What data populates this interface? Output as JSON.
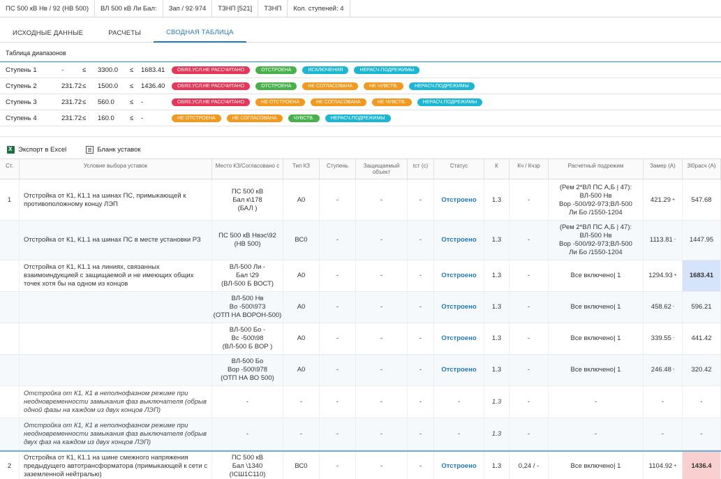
{
  "topbar": [
    "ПС 500 кВ Нв        / 92 (НВ          500)",
    "ВЛ 500 кВ Ли          Бал:",
    "Зап / 92·974",
    "ТЗНП [521]",
    "ТЗНП",
    "Кол. ступеней: 4"
  ],
  "tabs": [
    {
      "label": "ИСХОДНЫЕ ДАННЫЕ",
      "active": false
    },
    {
      "label": "РАСЧЕТЫ",
      "active": false
    },
    {
      "label": "СВОДНАЯ ТАБЛИЦА",
      "active": true
    }
  ],
  "ranges_title": "Таблица диапазонов",
  "ranges": [
    {
      "step": "Ступень 1",
      "a": "-",
      "le1": "≤",
      "b": "3300.0",
      "le2": "≤",
      "c": "1683.41",
      "badges": [
        [
          "ОБЯЗ.УСЛ.НЕ РАССЧИТАНО",
          "red"
        ],
        [
          "ОТСТРОЕНА",
          "green"
        ],
        [
          "ИСКЛЮЧЕНИЯ",
          "cyan"
        ],
        [
          "НЕРАСЧ.ПОДРЕЖИМЫ",
          "cyan"
        ]
      ]
    },
    {
      "step": "Ступень 2",
      "a": "231.72",
      "le1": "≤",
      "b": "1500.0",
      "le2": "≤",
      "c": "1436.40",
      "badges": [
        [
          "ОБЯЗ.УСЛ.НЕ РАССЧИТАНО",
          "red"
        ],
        [
          "ОТСТРОЕНА",
          "green"
        ],
        [
          "НЕ СОГЛАСОВАНА",
          "orange"
        ],
        [
          "НЕ ЧУВСТВ.",
          "orange"
        ],
        [
          "НЕРАСЧ.ПОДРЕЖИМЫ",
          "cyan"
        ]
      ]
    },
    {
      "step": "Ступень 3",
      "a": "231.72",
      "le1": "≤",
      "b": "560.0",
      "le2": "≤",
      "c": "-",
      "badges": [
        [
          "ОБЯЗ.УСЛ.НЕ РАССЧИТАНО",
          "red"
        ],
        [
          "НЕ ОТСТРОЕНА",
          "orange"
        ],
        [
          "НЕ СОГЛАСОВАНА",
          "orange"
        ],
        [
          "НЕ ЧУВСТВ.",
          "orange"
        ],
        [
          "НЕРАСЧ.ПОДРЕЖИМЫ",
          "cyan"
        ]
      ]
    },
    {
      "step": "Ступень 4",
      "a": "231.72",
      "le1": "≤",
      "b": "160.0",
      "le2": "≤",
      "c": "-",
      "badges": [
        [
          "НЕ ОТСТРОЕНА",
          "orange"
        ],
        [
          "НЕ СОГЛАСОВАНА",
          "orange"
        ],
        [
          "ЧУВСТВ.",
          "green"
        ],
        [
          "НЕРАСЧ.ПОДРЕЖИМЫ",
          "cyan"
        ]
      ]
    }
  ],
  "toolbar": {
    "export": "Экспорт в Excel",
    "blank": "Бланк уставок"
  },
  "columns": [
    "Ст.",
    "Условие выбора уставок",
    "Место КЗ/Согласовано с",
    "Тип КЗ",
    "Ступень",
    "Защищаемый объект",
    "tст (с)",
    "Статус",
    "К",
    "Кч / Кчзр",
    "Расчетный подрежим",
    "Замер (А)",
    "3I0расч (А)"
  ],
  "rows": [
    {
      "st": "1",
      "cond": "Отстройка от К1, К1.1 на шинах ПС, примыкающей к противоположному концу ЛЭП",
      "place": "ПС 500 кВ\nБал              к\\178\n(БАЛ                     )",
      "type": "А0",
      "stup": "-",
      "obj": "-",
      "t": "-",
      "status": "Отстроено",
      "k": "1.3",
      "kch": "-",
      "mode": "(Рем 2*ВЛ ПС А,Б | 47):\nВЛ-500 Нв\nВор         -500/92-973;ВЛ-500\nЛи         Бо          /1550-1204",
      "meas": "421.29",
      "sup": "+",
      "calc": "547.68",
      "h": 58,
      "alt": false
    },
    {
      "st": "",
      "cond": "Отстройка от К1, К1.1 на шинах ПС в месте установки РЗ",
      "place": "ПС 500 кВ Нвэс\\92\n(НВ           500)",
      "type": "ВС0",
      "stup": "-",
      "obj": "-",
      "t": "-",
      "status": "Отстроено",
      "k": "1.3",
      "kch": "-",
      "mode": "(Рем 2*ВЛ ПС А,Б | 47):\nВЛ-500 Нв\nВор         -500/92-973;ВЛ-500\nЛи         Бо          /1550-1204",
      "meas": "1113.81",
      "sup": "-",
      "calc": "1447.95",
      "h": 57,
      "alt": true
    },
    {
      "st": "",
      "cond": "Отстройка от К1, К1.1 на линиях, связанных взаимоиндукцией с защищаемой и не имеющих общих точек хотя бы на одном из концов",
      "place": "ВЛ-500 Ли           -\nБал                    \\29\n(ВЛ-500 Б        ВОСТ)",
      "type": "А0",
      "stup": "-",
      "obj": "-",
      "t": "-",
      "status": "Отстроено",
      "k": "1.3",
      "kch": "-",
      "mode": "Все включено| 1",
      "meas": "1294.93",
      "sup": "+",
      "calc": "1683.41",
      "h": 45,
      "alt": false,
      "hl": "blue"
    },
    {
      "st": "",
      "cond": "",
      "place": "ВЛ-500 Нв\nВо                  -500\\973\n(ОТП НА ВОРОН-500)",
      "type": "А0",
      "stup": "-",
      "obj": "-",
      "t": "-",
      "status": "Отстроено",
      "k": "1.3",
      "kch": "-",
      "mode": "Все включено| 1",
      "meas": "458.62",
      "sup": "-",
      "calc": "596.21",
      "h": 45,
      "alt": true
    },
    {
      "st": "",
      "cond": "",
      "place": "ВЛ-500 Бо          -\nВс                 -500\\98\n(ВЛ-500 Б       ВОР      )",
      "type": "А0",
      "stup": "-",
      "obj": "-",
      "t": "-",
      "status": "Отстроено",
      "k": "1.3",
      "kch": "-",
      "mode": "Все включено| 1",
      "meas": "339.55",
      "sup": "-",
      "calc": "441.42",
      "h": 45,
      "alt": false
    },
    {
      "st": "",
      "cond": "",
      "place": "ВЛ-500 Бо\nВор              -500\\978\n(ОТП НА ВО           500)",
      "type": "А0",
      "stup": "-",
      "obj": "-",
      "t": "-",
      "status": "Отстроено",
      "k": "1.3",
      "kch": "-",
      "mode": "Все включено| 1",
      "meas": "246.48",
      "sup": "-",
      "calc": "320.42",
      "h": 45,
      "alt": true
    },
    {
      "st": "",
      "cond": "Отстройка от К1, К1 в неполнофазном режиме при неодновременности замыкания фаз выключателя (обрыв одной фазы на каждом из двух концов ЛЭП)",
      "place": "-",
      "type": "-",
      "stup": "-",
      "obj": "-",
      "t": "-",
      "status": "-",
      "k": "1.3",
      "kch": "-",
      "mode": "-",
      "meas": "-",
      "sup": "",
      "calc": "-",
      "h": 46,
      "alt": false,
      "ital": true
    },
    {
      "st": "",
      "cond": "Отстройка от К1, К1 в неполнофазном режиме при неодновременности замыкания фаз выключателя (обрыв двух фаз на каждом из двух концов ЛЭП)",
      "place": "-",
      "type": "-",
      "stup": "-",
      "obj": "-",
      "t": "-",
      "status": "-",
      "k": "1.3",
      "kch": "-",
      "mode": "-",
      "meas": "-",
      "sup": "",
      "calc": "-",
      "h": 46,
      "alt": true,
      "ital": true
    },
    {
      "st": "2",
      "cond": "Отстройка от К1, К1.1 на шине смежного напряжения предыдущего автотрансформатора (примыкающей к сети с заземленной нейтралью)",
      "place": "ПС 500 кВ\nБал             \\1340\n(ІСШ1С110)",
      "type": "ВС0",
      "stup": "-",
      "obj": "-",
      "t": "-",
      "status": "Отстроено",
      "k": "1.3",
      "kch": "0,24 / -",
      "mode": "Все включено| 1",
      "meas": "1104.92",
      "sup": "+",
      "calc": "1436.4",
      "h": 45,
      "alt": false,
      "hl": "red",
      "sep": true
    }
  ]
}
